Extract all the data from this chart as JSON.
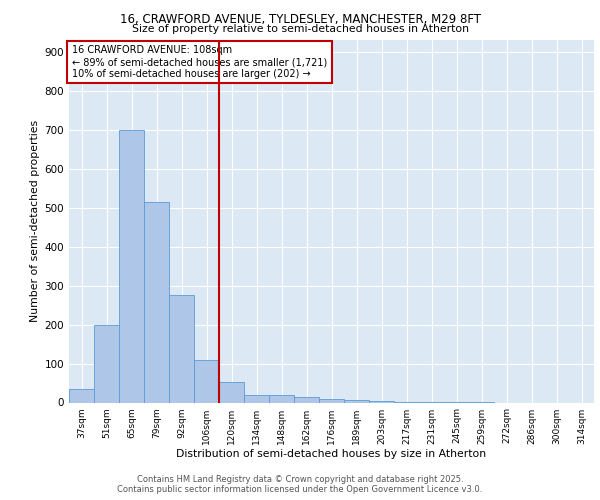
{
  "title_line1": "16, CRAWFORD AVENUE, TYLDESLEY, MANCHESTER, M29 8FT",
  "title_line2": "Size of property relative to semi-detached houses in Atherton",
  "xlabel": "Distribution of semi-detached houses by size in Atherton",
  "ylabel": "Number of semi-detached properties",
  "categories": [
    "37sqm",
    "51sqm",
    "65sqm",
    "79sqm",
    "92sqm",
    "106sqm",
    "120sqm",
    "134sqm",
    "148sqm",
    "162sqm",
    "176sqm",
    "189sqm",
    "203sqm",
    "217sqm",
    "231sqm",
    "245sqm",
    "259sqm",
    "272sqm",
    "286sqm",
    "300sqm",
    "314sqm"
  ],
  "values": [
    35,
    200,
    700,
    515,
    275,
    108,
    53,
    20,
    20,
    13,
    9,
    6,
    4,
    2,
    1,
    1,
    1,
    0,
    0,
    0,
    0
  ],
  "bar_color": "#aec6e8",
  "bar_edge_color": "#5b9bd5",
  "ref_line_index": 5,
  "ref_line_color": "#c00000",
  "annotation_title": "16 CRAWFORD AVENUE: 108sqm",
  "annotation_line1": "← 89% of semi-detached houses are smaller (1,721)",
  "annotation_line2": "10% of semi-detached houses are larger (202) →",
  "annotation_box_color": "#c00000",
  "ylim": [
    0,
    930
  ],
  "yticks": [
    0,
    100,
    200,
    300,
    400,
    500,
    600,
    700,
    800,
    900
  ],
  "background_color": "#dce9f5",
  "plot_bg_color": "#dce9f5",
  "footer_line1": "Contains HM Land Registry data © Crown copyright and database right 2025.",
  "footer_line2": "Contains public sector information licensed under the Open Government Licence v3.0."
}
